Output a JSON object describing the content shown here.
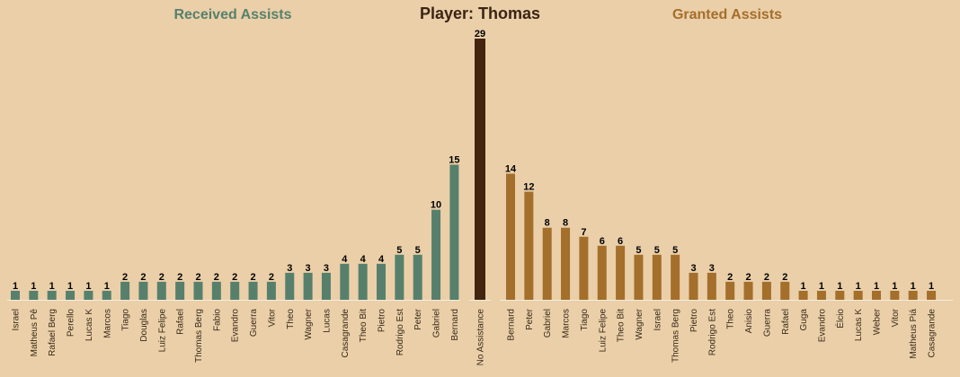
{
  "chart_data": {
    "type": "bar",
    "title": "Player: Thomas",
    "colors": {
      "background": "#eacfa8",
      "received": "#57806c",
      "no_assistance": "#43240e",
      "granted": "#a46e2b",
      "title": "#3b2412"
    },
    "received": {
      "title": "Received Assists",
      "categories": [
        "Israel",
        "Matheus Pê",
        "Rafael Berg",
        "Perello",
        "Lucas K",
        "Marcos",
        "Tiago",
        "Douglas",
        "Luiz Felipe",
        "Rafael",
        "Thomas Berg",
        "Fabio",
        "Evandro",
        "Guerra",
        "Vitor",
        "Theo",
        "Wagner",
        "Lucas",
        "Casagrande",
        "Theo Bit",
        "Pietro",
        "Rodrigo Est",
        "Peter",
        "Gabriel",
        "Bernard"
      ],
      "values": [
        1,
        1,
        1,
        1,
        1,
        1,
        2,
        2,
        2,
        2,
        2,
        2,
        2,
        2,
        2,
        3,
        3,
        3,
        4,
        4,
        4,
        5,
        5,
        10,
        15
      ]
    },
    "no_assistance": {
      "category": "No Assistance",
      "value": 29
    },
    "granted": {
      "title": "Granted Assists",
      "categories": [
        "Bernard",
        "Peter",
        "Gabriel",
        "Marcos",
        "Tiago",
        "Luiz Felipe",
        "Theo Bit",
        "Wagner",
        "Israel",
        "Thomas Berg",
        "Pietro",
        "Rodrigo Est",
        "Theo",
        "Anisio",
        "Guerra",
        "Rafael",
        "Guga",
        "Evandro",
        "Élcio",
        "Lucas K",
        "Weber",
        "Vitor",
        "Matheus Piá",
        "Casagrande"
      ],
      "values": [
        14,
        12,
        8,
        8,
        7,
        6,
        6,
        5,
        5,
        5,
        3,
        3,
        2,
        2,
        2,
        2,
        1,
        1,
        1,
        1,
        1,
        1,
        1,
        1
      ]
    },
    "ylim": [
      0,
      29
    ]
  }
}
